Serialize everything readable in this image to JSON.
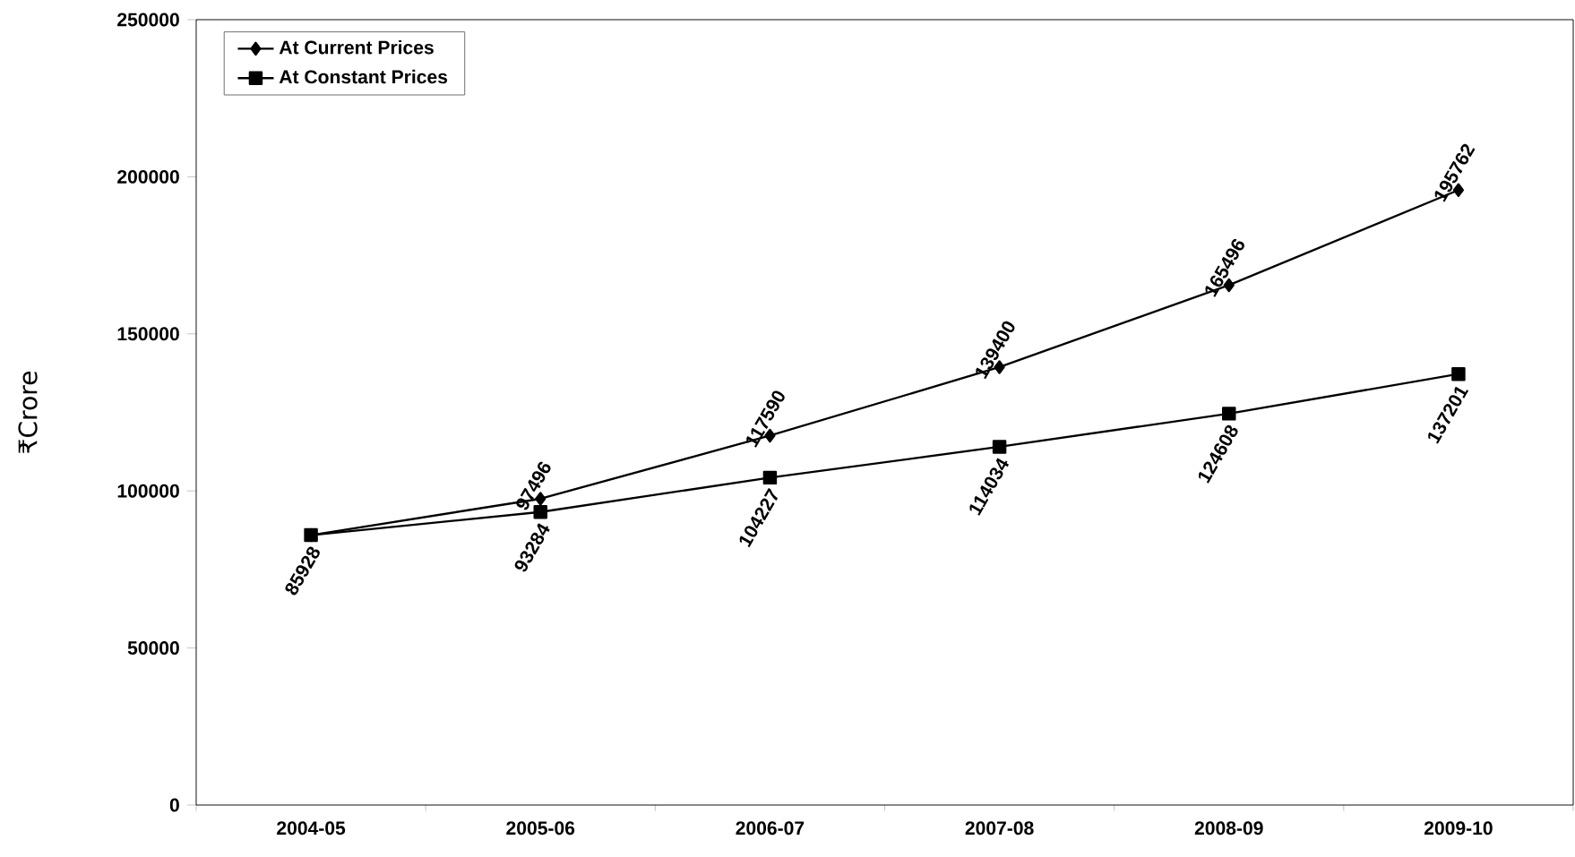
{
  "chart_data": {
    "type": "line",
    "ylabel": "₹Crore",
    "categories": [
      "2004-05",
      "2005-06",
      "2006-07",
      "2007-08",
      "2008-09",
      "2009-10"
    ],
    "series": [
      {
        "name": "At Current Prices",
        "color": "#000000",
        "marker": "diamond",
        "values": [
          85928,
          97496,
          117590,
          139400,
          165496,
          195762
        ],
        "value_labels": [
          null,
          "97496",
          "117590",
          "139400",
          "165496",
          "195762"
        ]
      },
      {
        "name": "At Constant Prices",
        "color": "#000000",
        "marker": "square",
        "values": [
          85928,
          93284,
          104227,
          114034,
          124608,
          137201
        ],
        "value_labels": [
          "85928",
          "93284",
          "104227",
          "114034",
          "124608",
          "137201"
        ]
      }
    ],
    "ylim": [
      0,
      250000
    ],
    "yticks": [
      0,
      50000,
      100000,
      150000,
      200000,
      250000
    ],
    "grid": false,
    "legend": "top left",
    "line_style": "solid"
  }
}
